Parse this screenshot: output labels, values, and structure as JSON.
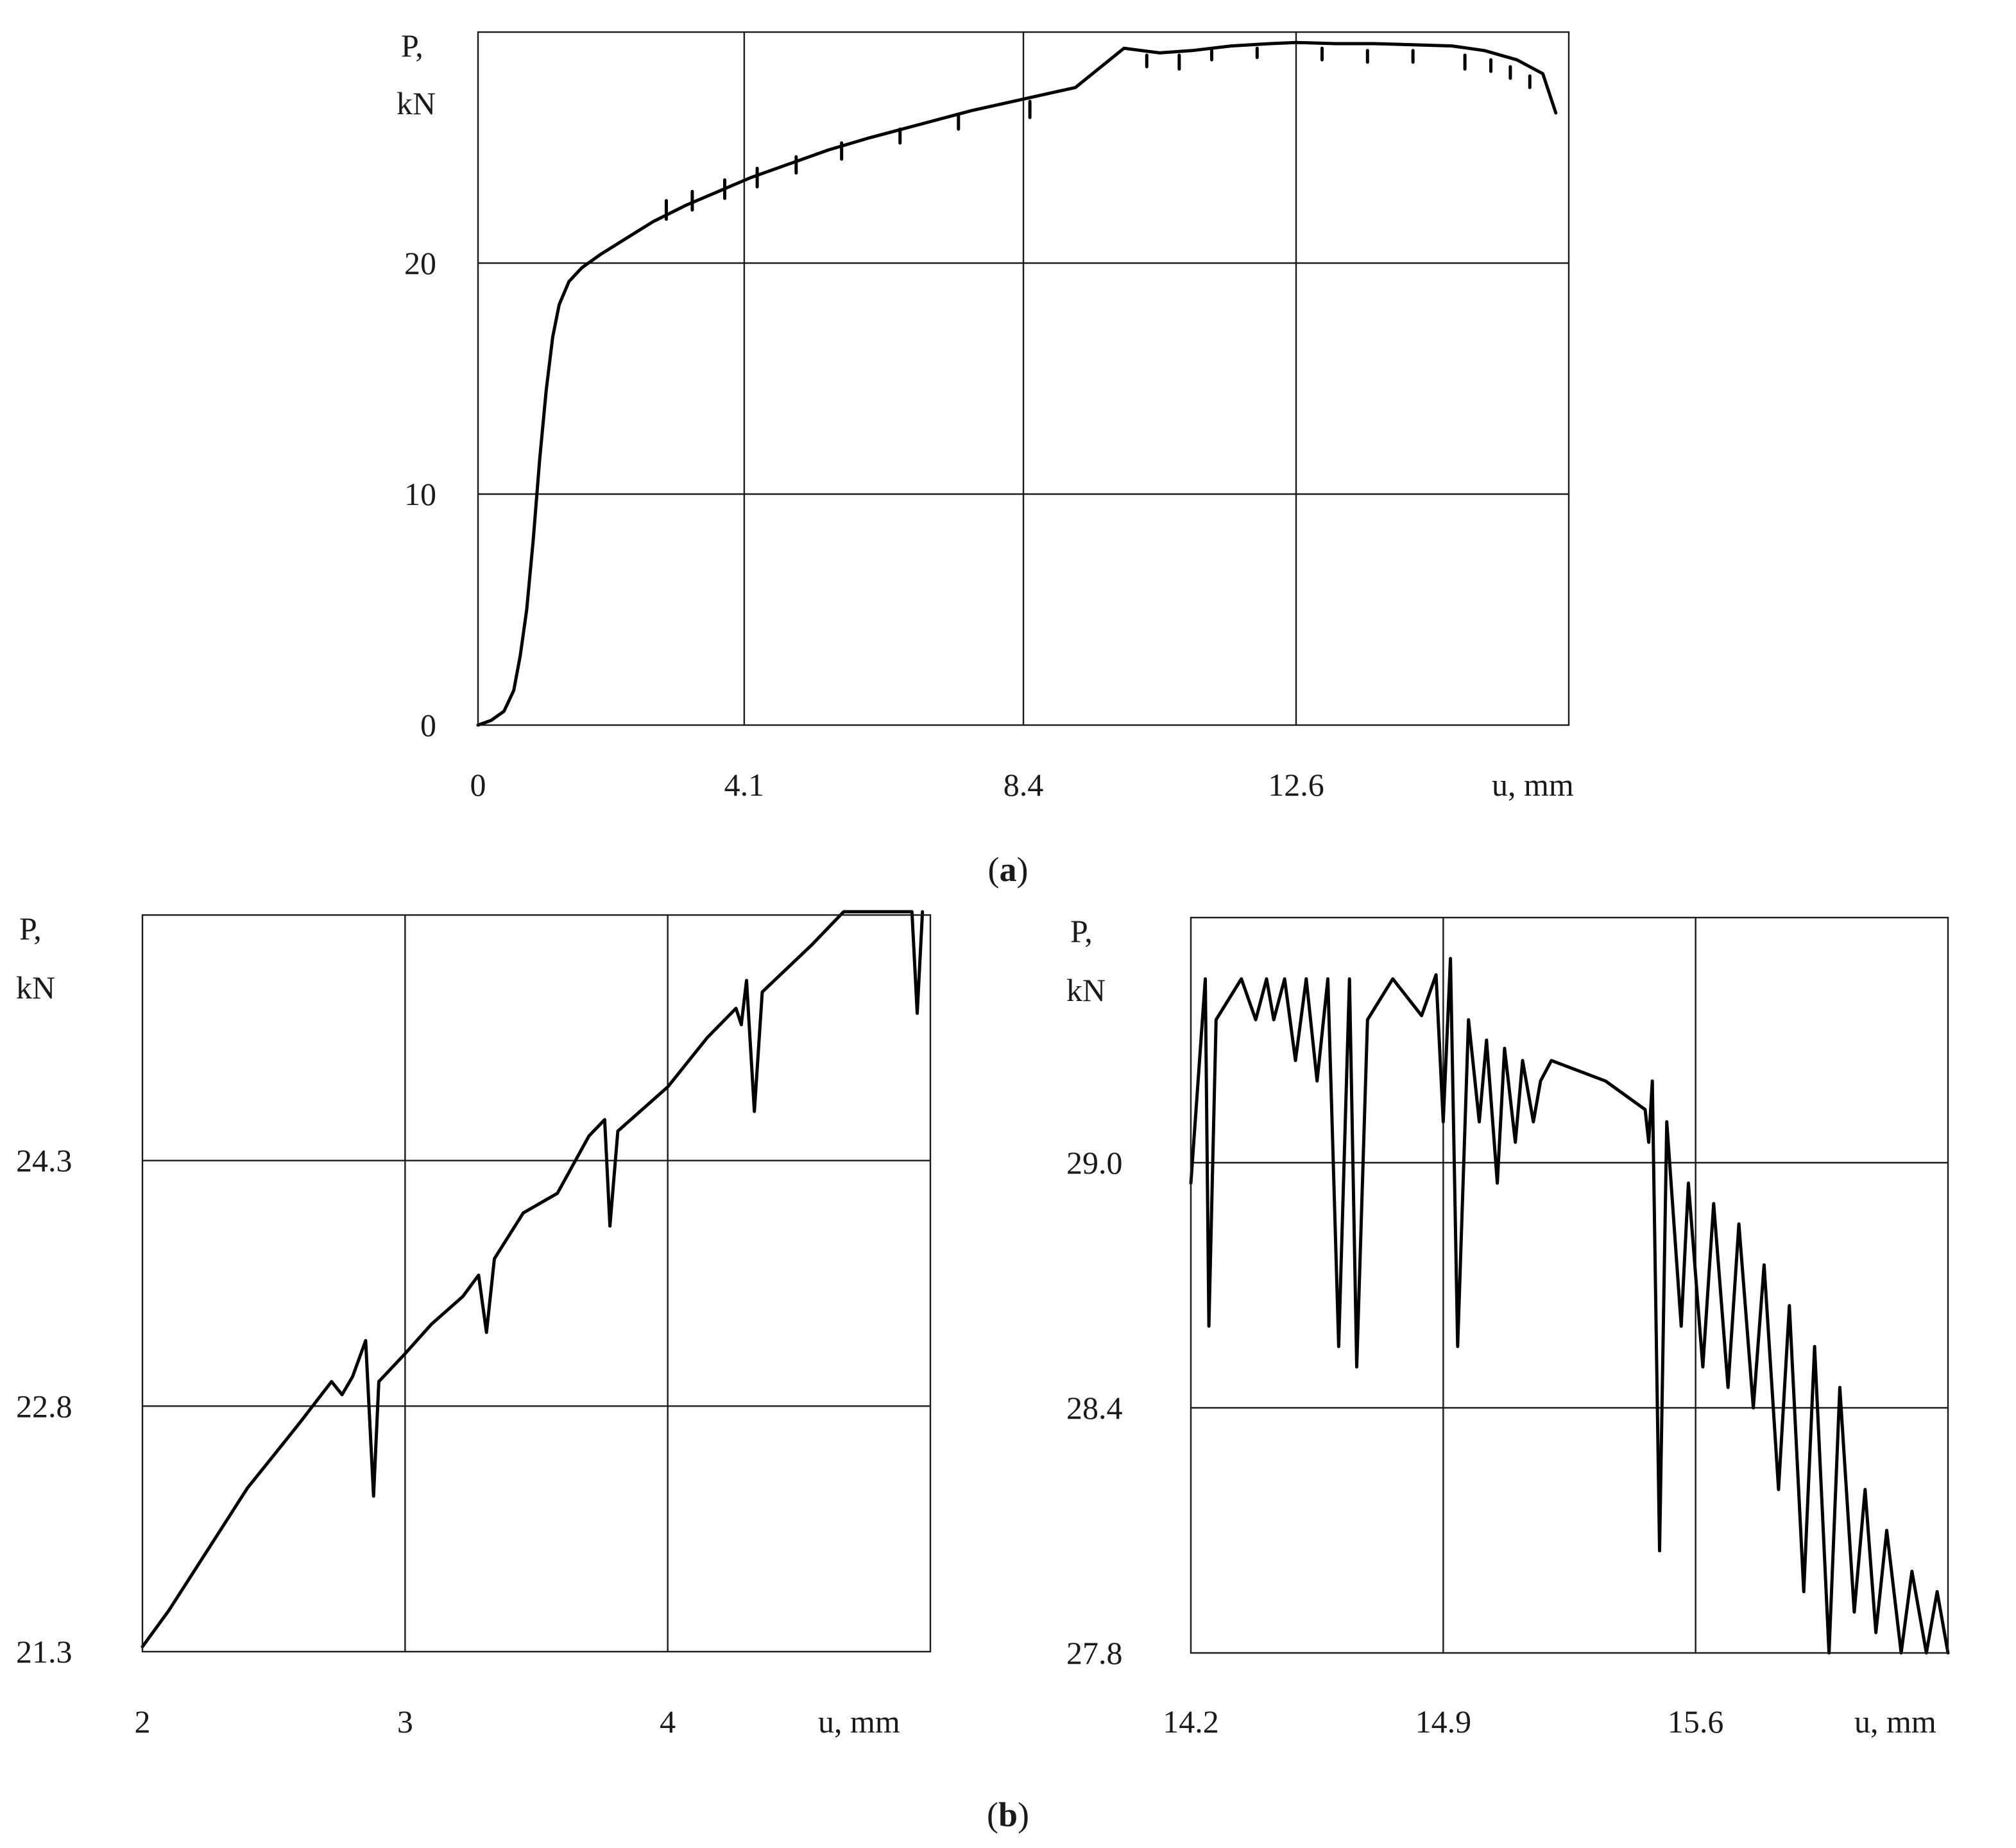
{
  "captions": [
    "(a)",
    "(b)"
  ],
  "caption_letters": [
    "a",
    "b"
  ],
  "colors": {
    "line": "#000000",
    "grid": "#1a1a1a",
    "background": "#ffffff"
  },
  "chart_data": [
    {
      "id": "a",
      "type": "line",
      "ylabel_lines": [
        "P,",
        "kN"
      ],
      "xlabel": "u, mm",
      "xlim": [
        0,
        16.8
      ],
      "ylim": [
        0,
        30
      ],
      "x_ticks": [
        0,
        4.1,
        8.4,
        12.6
      ],
      "x_tick_labels": [
        "0",
        "4.1",
        "8.4",
        "12.6"
      ],
      "y_ticks": [
        0,
        10,
        20
      ],
      "y_tick_labels": [
        "0",
        "10",
        "20"
      ],
      "grid": true,
      "series": [
        {
          "points": [
            [
              0,
              0
            ],
            [
              0.2,
              0.2
            ],
            [
              0.4,
              0.6
            ],
            [
              0.55,
              1.5
            ],
            [
              0.65,
              3
            ],
            [
              0.75,
              5
            ],
            [
              0.85,
              8
            ],
            [
              0.95,
              11.5
            ],
            [
              1.05,
              14.5
            ],
            [
              1.15,
              16.8
            ],
            [
              1.25,
              18.2
            ],
            [
              1.4,
              19.2
            ],
            [
              1.6,
              19.8
            ],
            [
              1.9,
              20.4
            ],
            [
              2.3,
              21.1
            ],
            [
              2.7,
              21.8
            ],
            [
              3.2,
              22.5
            ],
            [
              3.7,
              23.1
            ],
            [
              4.2,
              23.7
            ],
            [
              4.8,
              24.3
            ],
            [
              5.4,
              24.9
            ],
            [
              6,
              25.4
            ],
            [
              6.8,
              26
            ],
            [
              7.6,
              26.6
            ],
            [
              8.4,
              27.1
            ],
            [
              9.2,
              27.6
            ],
            [
              9.95,
              29.3
            ],
            [
              10.5,
              29.1
            ],
            [
              11,
              29.2
            ],
            [
              11.6,
              29.4
            ],
            [
              12.2,
              29.5
            ],
            [
              12.6,
              29.55
            ],
            [
              13.2,
              29.5
            ],
            [
              13.8,
              29.5
            ],
            [
              14.4,
              29.45
            ],
            [
              15,
              29.4
            ],
            [
              15.5,
              29.2
            ],
            [
              16,
              28.8
            ],
            [
              16.4,
              28.2
            ],
            [
              16.6,
              26.5
            ]
          ],
          "drops": [
            [
              2.9,
              22.7,
              0.8
            ],
            [
              3.3,
              23.1,
              0.8
            ],
            [
              3.8,
              23.6,
              0.8
            ],
            [
              4.3,
              24.1,
              0.8
            ],
            [
              4.9,
              24.6,
              0.7
            ],
            [
              5.6,
              25.2,
              0.7
            ],
            [
              6.5,
              25.8,
              0.6
            ],
            [
              7.4,
              26.4,
              0.6
            ],
            [
              8.5,
              27.0,
              0.7
            ],
            [
              10.3,
              29.0,
              0.5
            ],
            [
              10.8,
              29.0,
              0.6
            ],
            [
              11.3,
              29.2,
              0.4
            ],
            [
              12.0,
              29.3,
              0.4
            ],
            [
              13.0,
              29.3,
              0.5
            ],
            [
              13.7,
              29.2,
              0.5
            ],
            [
              14.4,
              29.2,
              0.5
            ],
            [
              15.2,
              29.0,
              0.6
            ],
            [
              15.6,
              28.8,
              0.5
            ],
            [
              15.9,
              28.5,
              0.5
            ],
            [
              16.2,
              28.1,
              0.5
            ]
          ]
        }
      ]
    },
    {
      "id": "b-left",
      "type": "line",
      "ylabel_lines": [
        "P,",
        "kN"
      ],
      "xlabel": "u, mm",
      "xlim": [
        2,
        5
      ],
      "ylim": [
        21.3,
        25.8
      ],
      "x_ticks": [
        2,
        3,
        4
      ],
      "x_tick_labels": [
        "2",
        "3",
        "4"
      ],
      "y_ticks": [
        21.3,
        22.8,
        24.3
      ],
      "y_tick_labels": [
        "21.3",
        "22.8",
        "24.3"
      ],
      "grid": true,
      "series": [
        {
          "points": [
            [
              2,
              21.33
            ],
            [
              2.1,
              21.55
            ],
            [
              2.2,
              21.8
            ],
            [
              2.3,
              22.05
            ],
            [
              2.4,
              22.3
            ],
            [
              2.5,
              22.5
            ],
            [
              2.6,
              22.7
            ],
            [
              2.72,
              22.95
            ],
            [
              2.76,
              22.87
            ],
            [
              2.8,
              22.98
            ],
            [
              2.85,
              23.2
            ],
            [
              2.88,
              22.25
            ],
            [
              2.9,
              22.95
            ],
            [
              3,
              23.12
            ],
            [
              3.1,
              23.3
            ],
            [
              3.22,
              23.47
            ],
            [
              3.28,
              23.6
            ],
            [
              3.31,
              23.25
            ],
            [
              3.34,
              23.7
            ],
            [
              3.45,
              23.98
            ],
            [
              3.58,
              24.1
            ],
            [
              3.7,
              24.45
            ],
            [
              3.76,
              24.55
            ],
            [
              3.78,
              23.9
            ],
            [
              3.81,
              24.48
            ],
            [
              4,
              24.75
            ],
            [
              4.15,
              25.05
            ],
            [
              4.26,
              25.23
            ],
            [
              4.28,
              25.13
            ],
            [
              4.3,
              25.4
            ],
            [
              4.33,
              24.6
            ],
            [
              4.36,
              25.33
            ],
            [
              4.55,
              25.62
            ],
            [
              4.67,
              25.82
            ],
            [
              4.8,
              25.82
            ],
            [
              4.93,
              25.82
            ],
            [
              4.95,
              25.2
            ],
            [
              4.97,
              25.82
            ]
          ]
        }
      ]
    },
    {
      "id": "b-right",
      "type": "line",
      "ylabel_lines": [
        "P,",
        "kN"
      ],
      "xlabel": "u, mm",
      "xlim": [
        14.2,
        16.3
      ],
      "ylim": [
        27.8,
        29.6
      ],
      "x_ticks": [
        14.2,
        14.9,
        15.6
      ],
      "x_tick_labels": [
        "14.2",
        "14.9",
        "15.6"
      ],
      "y_ticks": [
        27.8,
        28.4,
        29.0
      ],
      "y_tick_labels": [
        "27.8",
        "28.4",
        "29.0"
      ],
      "grid": true,
      "series": [
        {
          "points": [
            [
              14.2,
              28.95
            ],
            [
              14.24,
              29.45
            ],
            [
              14.25,
              28.6
            ],
            [
              14.27,
              29.35
            ],
            [
              14.34,
              29.45
            ],
            [
              14.38,
              29.35
            ],
            [
              14.41,
              29.45
            ],
            [
              14.43,
              29.35
            ],
            [
              14.46,
              29.45
            ],
            [
              14.49,
              29.25
            ],
            [
              14.52,
              29.45
            ],
            [
              14.55,
              29.2
            ],
            [
              14.58,
              29.45
            ],
            [
              14.61,
              28.55
            ],
            [
              14.64,
              29.45
            ],
            [
              14.66,
              28.5
            ],
            [
              14.69,
              29.35
            ],
            [
              14.76,
              29.45
            ],
            [
              14.84,
              29.36
            ],
            [
              14.88,
              29.46
            ],
            [
              14.9,
              29.1
            ],
            [
              14.92,
              29.5
            ],
            [
              14.94,
              28.55
            ],
            [
              14.97,
              29.35
            ],
            [
              15,
              29.1
            ],
            [
              15.02,
              29.3
            ],
            [
              15.05,
              28.95
            ],
            [
              15.07,
              29.28
            ],
            [
              15.1,
              29.05
            ],
            [
              15.12,
              29.25
            ],
            [
              15.15,
              29.1
            ],
            [
              15.17,
              29.2
            ],
            [
              15.2,
              29.25
            ],
            [
              15.35,
              29.2
            ],
            [
              15.46,
              29.13
            ],
            [
              15.47,
              29.05
            ],
            [
              15.48,
              29.2
            ],
            [
              15.5,
              28.05
            ],
            [
              15.52,
              29.1
            ],
            [
              15.56,
              28.6
            ],
            [
              15.58,
              28.95
            ],
            [
              15.62,
              28.5
            ],
            [
              15.65,
              28.9
            ],
            [
              15.69,
              28.45
            ],
            [
              15.72,
              28.85
            ],
            [
              15.76,
              28.4
            ],
            [
              15.79,
              28.75
            ],
            [
              15.83,
              28.2
            ],
            [
              15.86,
              28.65
            ],
            [
              15.9,
              27.95
            ],
            [
              15.93,
              28.55
            ],
            [
              15.97,
              27.8
            ],
            [
              16,
              28.45
            ],
            [
              16.04,
              27.9
            ],
            [
              16.07,
              28.2
            ],
            [
              16.1,
              27.85
            ],
            [
              16.13,
              28.1
            ],
            [
              16.17,
              27.8
            ],
            [
              16.2,
              28.0
            ],
            [
              16.24,
              27.8
            ],
            [
              16.27,
              27.95
            ],
            [
              16.3,
              27.8
            ]
          ]
        }
      ]
    }
  ]
}
